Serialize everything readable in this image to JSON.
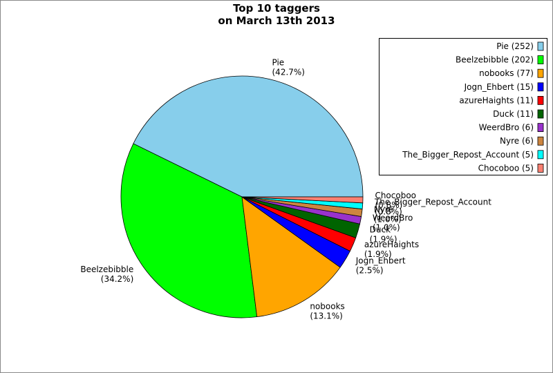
{
  "chart_data": {
    "type": "pie",
    "title": [
      "Top 10 taggers",
      "on March 13th 2013"
    ],
    "categories": [
      "Pie",
      "Beelzebibble",
      "nobooks",
      "Jogn_Ehbert",
      "azureHaights",
      "Duck",
      "WeerdBro",
      "Nyre",
      "The_Bigger_Repost_Account",
      "Chocoboo"
    ],
    "values": [
      42.7,
      34.2,
      13.1,
      2.5,
      1.9,
      1.9,
      1.0,
      1.0,
      0.8,
      0.8
    ],
    "value_labels": [
      "(42.7%)",
      "(34.2%)",
      "(13.1%)",
      "(2.5%)",
      "(1.9%)",
      "(1.9%)",
      "(1.0%)",
      "(1.0%)",
      "(0.8%)",
      "(0.8%)"
    ],
    "colors": [
      "#87ceeb",
      "#00ff00",
      "#ffa500",
      "#0000ff",
      "#ff0000",
      "#006400",
      "#9932cc",
      "#cd853f",
      "#00ffff",
      "#fa8072"
    ],
    "legend_labels": [
      "Pie (252)",
      "Beelzebibble (202)",
      "nobooks (77)",
      "Jogn_Ehbert (15)",
      "azureHaights (11)",
      "Duck (11)",
      "WeerdBro (6)",
      "Nyre (6)",
      "The_Bigger_Repost_Account (5)",
      "Chocoboo (5)"
    ],
    "legend": "upper right"
  }
}
